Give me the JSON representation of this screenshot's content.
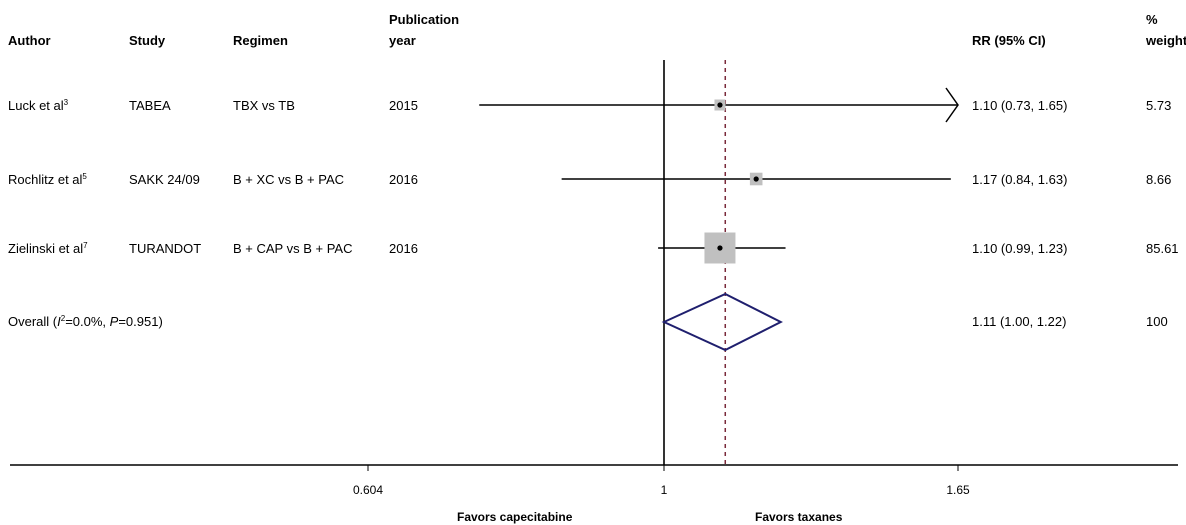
{
  "headers": {
    "author": "Author",
    "study": "Study",
    "regimen": "Regimen",
    "pub_year_line1": "Publication",
    "pub_year_line2": "year",
    "rr": "RR (95% CI)",
    "weight_line1": "%",
    "weight_line2": "weight"
  },
  "rows": [
    {
      "author": "Luck et al",
      "ref": "3",
      "study": "TABEA",
      "regimen": "TBX vs TB",
      "year": "2015",
      "rr_text": "1.10 (0.73, 1.65)",
      "weight": "5.73"
    },
    {
      "author": "Rochlitz et al",
      "ref": "5",
      "study": "SAKK 24/09",
      "regimen": "B + XC vs B + PAC",
      "year": "2016",
      "rr_text": "1.17 (0.84, 1.63)",
      "weight": "8.66"
    },
    {
      "author": "Zielinski et al",
      "ref": "7",
      "study": "TURANDOT",
      "regimen": "B + CAP vs B + PAC",
      "year": "2016",
      "rr_text": "1.10 (0.99, 1.23)",
      "weight": "85.61"
    }
  ],
  "overall": {
    "label_prefix": "Overall (",
    "i2_symbol": "I",
    "i2_sup": "2",
    "i2_value": "=0.0%, ",
    "p_symbol": "P",
    "p_value": "=0.951)",
    "rr_text": "1.11 (1.00, 1.22)",
    "weight": "100"
  },
  "favors": {
    "left": "Favors capecitabine",
    "right": "Favors taxanes"
  },
  "chart_data": {
    "type": "forest",
    "x_scale": "log",
    "xlim": [
      0.48,
      1.94
    ],
    "ticks": [
      {
        "value": 0.604,
        "label": "0.604"
      },
      {
        "value": 1,
        "label": "1"
      },
      {
        "value": 1.65,
        "label": "1.65"
      }
    ],
    "null_value": 1,
    "overall_reference": 1.11,
    "studies": [
      {
        "est": 1.1,
        "lo": 0.73,
        "hi": 1.65,
        "weight": 5.73,
        "hi_arrow": true
      },
      {
        "est": 1.17,
        "lo": 0.84,
        "hi": 1.63,
        "weight": 8.66,
        "hi_arrow": false
      },
      {
        "est": 1.1,
        "lo": 0.99,
        "hi": 1.23,
        "weight": 85.61,
        "hi_arrow": false
      }
    ],
    "overall": {
      "est": 1.11,
      "lo": 1.0,
      "hi": 1.22
    },
    "colors": {
      "marker": "#c0c0c0",
      "diamond": "#1f1f6e",
      "reference": "#7a2a3a",
      "line": "#000000"
    }
  }
}
